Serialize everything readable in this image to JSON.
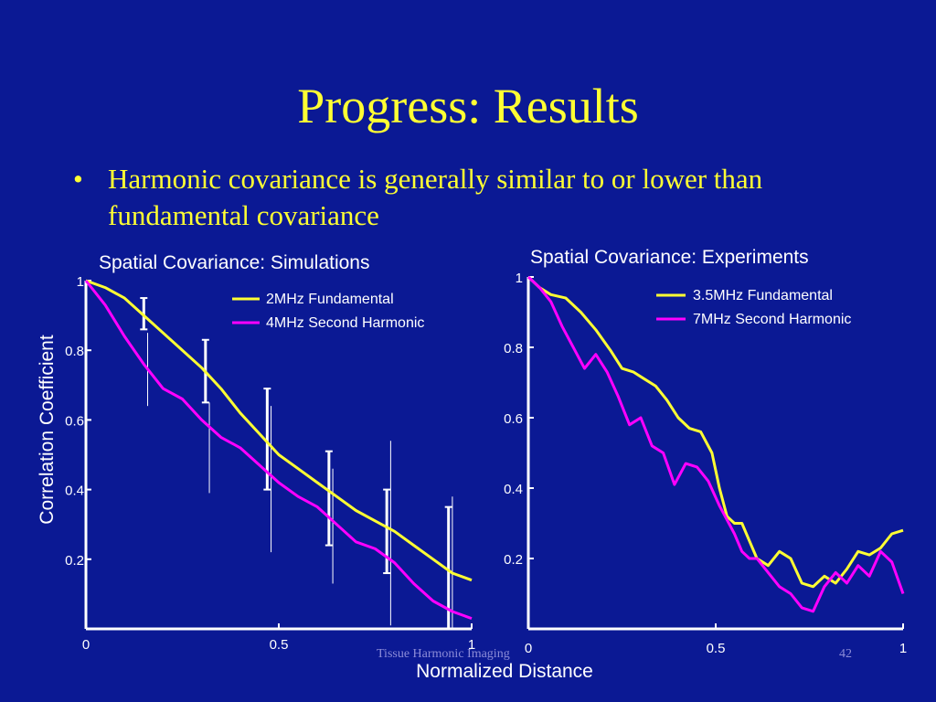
{
  "slide": {
    "title": "Progress: Results",
    "bullet_symbol": "•",
    "bullet": "Harmonic covariance is generally similar to  or lower than fundamental covariance"
  },
  "footer": {
    "text": "Tissue Harmonic Imaging",
    "page": "42"
  },
  "colors": {
    "background": "#0b1994",
    "title": "#ffff33",
    "fundamental": "#ffff33",
    "harmonic": "#ff00ff",
    "axes": "#ffffff",
    "errorbars": "#ffffff"
  },
  "chart_data": [
    {
      "type": "line",
      "title": "Spatial Covariance: Simulations",
      "xlabel": "Normalized Distance",
      "ylabel": "Correlation Coefficient",
      "xlim": [
        0,
        1
      ],
      "ylim": [
        0,
        1
      ],
      "xticks": [
        "0",
        "0.5",
        "1"
      ],
      "yticks": [
        "0.2",
        "0.4",
        "0.6",
        "0.8",
        "1"
      ],
      "legend_position": "top-right",
      "series": [
        {
          "name": "2MHz Fundamental",
          "x": [
            0,
            0.05,
            0.1,
            0.15,
            0.2,
            0.25,
            0.3,
            0.35,
            0.4,
            0.45,
            0.5,
            0.55,
            0.6,
            0.65,
            0.7,
            0.75,
            0.8,
            0.85,
            0.9,
            0.95,
            1.0
          ],
          "y": [
            1.0,
            0.98,
            0.95,
            0.9,
            0.85,
            0.8,
            0.75,
            0.69,
            0.62,
            0.56,
            0.5,
            0.46,
            0.42,
            0.38,
            0.34,
            0.31,
            0.28,
            0.24,
            0.2,
            0.16,
            0.14
          ]
        },
        {
          "name": "4MHz Second Harmonic",
          "x": [
            0,
            0.05,
            0.1,
            0.15,
            0.2,
            0.25,
            0.3,
            0.35,
            0.4,
            0.45,
            0.5,
            0.55,
            0.6,
            0.65,
            0.7,
            0.75,
            0.8,
            0.85,
            0.9,
            0.95,
            1.0
          ],
          "y": [
            1.0,
            0.93,
            0.84,
            0.76,
            0.69,
            0.66,
            0.6,
            0.55,
            0.52,
            0.47,
            0.42,
            0.38,
            0.35,
            0.3,
            0.25,
            0.23,
            0.19,
            0.13,
            0.08,
            0.05,
            0.03
          ]
        }
      ],
      "error_bars": [
        {
          "series": "2MHz Fundamental",
          "x": 0.15,
          "low": 0.86,
          "high": 0.95
        },
        {
          "series": "2MHz Fundamental",
          "x": 0.31,
          "low": 0.65,
          "high": 0.83
        },
        {
          "series": "2MHz Fundamental",
          "x": 0.47,
          "low": 0.4,
          "high": 0.69
        },
        {
          "series": "2MHz Fundamental",
          "x": 0.63,
          "low": 0.24,
          "high": 0.51
        },
        {
          "series": "2MHz Fundamental",
          "x": 0.78,
          "low": 0.16,
          "high": 0.4
        },
        {
          "series": "2MHz Fundamental",
          "x": 0.94,
          "low": 0.0,
          "high": 0.35
        },
        {
          "series": "4MHz Second Harmonic",
          "x": 0.16,
          "low": 0.64,
          "high": 0.85
        },
        {
          "series": "4MHz Second Harmonic",
          "x": 0.32,
          "low": 0.39,
          "high": 0.65
        },
        {
          "series": "4MHz Second Harmonic",
          "x": 0.48,
          "low": 0.22,
          "high": 0.64
        },
        {
          "series": "4MHz Second Harmonic",
          "x": 0.64,
          "low": 0.13,
          "high": 0.46
        },
        {
          "series": "4MHz Second Harmonic",
          "x": 0.79,
          "low": 0.01,
          "high": 0.54
        },
        {
          "series": "4MHz Second Harmonic",
          "x": 0.95,
          "low": 0.0,
          "high": 0.38
        }
      ]
    },
    {
      "type": "line",
      "title": "Spatial Covariance: Experiments",
      "xlim": [
        0,
        1
      ],
      "ylim": [
        0,
        1
      ],
      "xticks": [
        "0",
        "0.5",
        "1"
      ],
      "yticks": [
        "0.2",
        "0.4",
        "0.6",
        "0.8",
        "1"
      ],
      "legend_position": "top-right",
      "series": [
        {
          "name": "3.5MHz Fundamental",
          "x": [
            0,
            0.03,
            0.06,
            0.1,
            0.14,
            0.18,
            0.22,
            0.25,
            0.28,
            0.31,
            0.34,
            0.37,
            0.4,
            0.43,
            0.46,
            0.49,
            0.51,
            0.53,
            0.55,
            0.57,
            0.59,
            0.61,
            0.64,
            0.67,
            0.7,
            0.73,
            0.76,
            0.79,
            0.82,
            0.85,
            0.88,
            0.91,
            0.94,
            0.97,
            1.0
          ],
          "y": [
            1.0,
            0.97,
            0.95,
            0.94,
            0.9,
            0.85,
            0.79,
            0.74,
            0.73,
            0.71,
            0.69,
            0.65,
            0.6,
            0.57,
            0.56,
            0.5,
            0.4,
            0.32,
            0.3,
            0.3,
            0.25,
            0.2,
            0.18,
            0.22,
            0.2,
            0.13,
            0.12,
            0.15,
            0.13,
            0.17,
            0.22,
            0.21,
            0.23,
            0.27,
            0.28
          ]
        },
        {
          "name": "7MHz Second Harmonic",
          "x": [
            0,
            0.03,
            0.06,
            0.09,
            0.12,
            0.15,
            0.18,
            0.21,
            0.24,
            0.27,
            0.3,
            0.33,
            0.36,
            0.39,
            0.42,
            0.45,
            0.48,
            0.51,
            0.53,
            0.55,
            0.57,
            0.59,
            0.61,
            0.64,
            0.67,
            0.7,
            0.73,
            0.76,
            0.79,
            0.82,
            0.85,
            0.88,
            0.91,
            0.94,
            0.97,
            1.0
          ],
          "y": [
            1.0,
            0.97,
            0.93,
            0.86,
            0.8,
            0.74,
            0.78,
            0.73,
            0.66,
            0.58,
            0.6,
            0.52,
            0.5,
            0.41,
            0.47,
            0.46,
            0.42,
            0.35,
            0.31,
            0.27,
            0.22,
            0.2,
            0.2,
            0.16,
            0.12,
            0.1,
            0.06,
            0.05,
            0.12,
            0.16,
            0.13,
            0.18,
            0.15,
            0.22,
            0.19,
            0.1
          ]
        }
      ]
    }
  ]
}
